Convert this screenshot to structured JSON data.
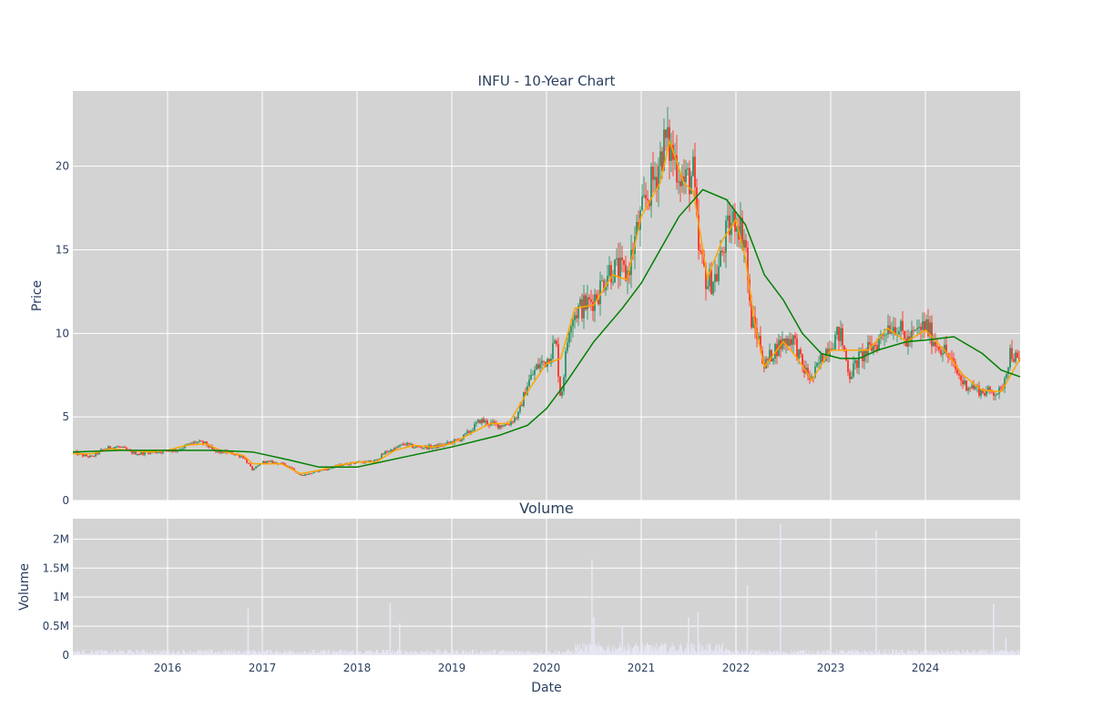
{
  "chart_data": [
    {
      "type": "candlestick",
      "title": "INFU - 10-Year Chart",
      "ylabel": "Price",
      "xlabel": "",
      "x_range": [
        2015.0,
        2025.0
      ],
      "ylim": [
        0,
        24.5
      ],
      "y_ticks": [
        0,
        5,
        10,
        15,
        20
      ],
      "x_ticks": [
        2016,
        2017,
        2018,
        2019,
        2020,
        2021,
        2022,
        2023,
        2024
      ],
      "grid": true,
      "plot_bgcolor": "#d3d3d3",
      "increasing_color": "#3d9970",
      "decreasing_color": "#ff4136",
      "series": [
        {
          "kind": "close",
          "color": "#3d9970",
          "points": [
            [
              2015.0,
              2.9
            ],
            [
              2015.1,
              2.7
            ],
            [
              2015.2,
              2.6
            ],
            [
              2015.3,
              3.0
            ],
            [
              2015.4,
              3.2
            ],
            [
              2015.5,
              3.2
            ],
            [
              2015.6,
              2.9
            ],
            [
              2015.7,
              2.8
            ],
            [
              2015.8,
              2.9
            ],
            [
              2015.9,
              2.9
            ],
            [
              2016.0,
              3.0
            ],
            [
              2016.1,
              3.0
            ],
            [
              2016.2,
              3.3
            ],
            [
              2016.3,
              3.5
            ],
            [
              2016.4,
              3.4
            ],
            [
              2016.5,
              2.9
            ],
            [
              2016.6,
              2.9
            ],
            [
              2016.7,
              2.8
            ],
            [
              2016.8,
              2.6
            ],
            [
              2016.9,
              1.8
            ],
            [
              2017.0,
              2.3
            ],
            [
              2017.1,
              2.3
            ],
            [
              2017.2,
              2.2
            ],
            [
              2017.3,
              2.0
            ],
            [
              2017.4,
              1.5
            ],
            [
              2017.5,
              1.6
            ],
            [
              2017.6,
              1.8
            ],
            [
              2017.7,
              1.9
            ],
            [
              2017.8,
              2.1
            ],
            [
              2017.9,
              2.2
            ],
            [
              2018.0,
              2.3
            ],
            [
              2018.1,
              2.3
            ],
            [
              2018.2,
              2.4
            ],
            [
              2018.3,
              2.9
            ],
            [
              2018.4,
              3.1
            ],
            [
              2018.5,
              3.4
            ],
            [
              2018.6,
              3.2
            ],
            [
              2018.7,
              3.2
            ],
            [
              2018.8,
              3.2
            ],
            [
              2018.9,
              3.3
            ],
            [
              2019.0,
              3.5
            ],
            [
              2019.1,
              3.7
            ],
            [
              2019.2,
              4.2
            ],
            [
              2019.3,
              4.8
            ],
            [
              2019.4,
              4.6
            ],
            [
              2019.5,
              4.5
            ],
            [
              2019.6,
              4.6
            ],
            [
              2019.7,
              5.1
            ],
            [
              2019.8,
              7.0
            ],
            [
              2019.9,
              8.0
            ],
            [
              2020.0,
              8.4
            ],
            [
              2020.1,
              9.5
            ],
            [
              2020.15,
              6.0
            ],
            [
              2020.25,
              11.0
            ],
            [
              2020.35,
              11.5
            ],
            [
              2020.45,
              11.8
            ],
            [
              2020.55,
              12.5
            ],
            [
              2020.65,
              13.8
            ],
            [
              2020.75,
              13.8
            ],
            [
              2020.85,
              13.5
            ],
            [
              2020.95,
              16.0
            ],
            [
              2021.05,
              18.0
            ],
            [
              2021.15,
              19.5
            ],
            [
              2021.25,
              21.5
            ],
            [
              2021.35,
              20.5
            ],
            [
              2021.45,
              19.0
            ],
            [
              2021.55,
              19.5
            ],
            [
              2021.6,
              15.0
            ],
            [
              2021.7,
              13.0
            ],
            [
              2021.8,
              13.5
            ],
            [
              2021.9,
              16.0
            ],
            [
              2022.0,
              17.0
            ],
            [
              2022.1,
              15.5
            ],
            [
              2022.15,
              11.0
            ],
            [
              2022.25,
              9.5
            ],
            [
              2022.3,
              8.0
            ],
            [
              2022.4,
              9.0
            ],
            [
              2022.5,
              9.5
            ],
            [
              2022.6,
              9.8
            ],
            [
              2022.7,
              8.0
            ],
            [
              2022.8,
              7.2
            ],
            [
              2022.9,
              8.5
            ],
            [
              2023.0,
              9.5
            ],
            [
              2023.1,
              10.0
            ],
            [
              2023.2,
              7.5
            ],
            [
              2023.3,
              8.5
            ],
            [
              2023.4,
              9.0
            ],
            [
              2023.5,
              9.5
            ],
            [
              2023.6,
              10.5
            ],
            [
              2023.7,
              10.5
            ],
            [
              2023.8,
              9.5
            ],
            [
              2023.9,
              10.0
            ],
            [
              2024.0,
              10.5
            ],
            [
              2024.1,
              9.5
            ],
            [
              2024.2,
              9.0
            ],
            [
              2024.3,
              8.0
            ],
            [
              2024.4,
              7.0
            ],
            [
              2024.5,
              6.8
            ],
            [
              2024.6,
              6.5
            ],
            [
              2024.7,
              6.5
            ],
            [
              2024.8,
              6.5
            ],
            [
              2024.9,
              9.0
            ],
            [
              2025.0,
              8.0
            ]
          ]
        },
        {
          "kind": "ma_short",
          "color": "#ffa500",
          "points": [
            [
              2015.0,
              2.8
            ],
            [
              2015.2,
              2.8
            ],
            [
              2015.4,
              3.1
            ],
            [
              2015.6,
              3.0
            ],
            [
              2015.8,
              2.9
            ],
            [
              2016.0,
              3.0
            ],
            [
              2016.2,
              3.3
            ],
            [
              2016.4,
              3.4
            ],
            [
              2016.6,
              2.9
            ],
            [
              2016.8,
              2.7
            ],
            [
              2016.9,
              2.2
            ],
            [
              2017.0,
              2.2
            ],
            [
              2017.2,
              2.2
            ],
            [
              2017.4,
              1.6
            ],
            [
              2017.6,
              1.8
            ],
            [
              2017.8,
              2.1
            ],
            [
              2018.0,
              2.3
            ],
            [
              2018.2,
              2.3
            ],
            [
              2018.4,
              3.0
            ],
            [
              2018.6,
              3.3
            ],
            [
              2018.8,
              3.2
            ],
            [
              2019.0,
              3.4
            ],
            [
              2019.2,
              4.0
            ],
            [
              2019.4,
              4.6
            ],
            [
              2019.6,
              4.6
            ],
            [
              2019.8,
              6.5
            ],
            [
              2020.0,
              8.2
            ],
            [
              2020.15,
              8.5
            ],
            [
              2020.3,
              11.5
            ],
            [
              2020.5,
              11.7
            ],
            [
              2020.7,
              13.5
            ],
            [
              2020.85,
              13.2
            ],
            [
              2021.0,
              17.0
            ],
            [
              2021.2,
              19.0
            ],
            [
              2021.3,
              21.5
            ],
            [
              2021.45,
              19.0
            ],
            [
              2021.55,
              18.5
            ],
            [
              2021.7,
              13.3
            ],
            [
              2021.85,
              15.5
            ],
            [
              2022.0,
              16.8
            ],
            [
              2022.1,
              14.5
            ],
            [
              2022.2,
              10.5
            ],
            [
              2022.3,
              8.0
            ],
            [
              2022.5,
              9.5
            ],
            [
              2022.65,
              8.5
            ],
            [
              2022.8,
              7.2
            ],
            [
              2023.0,
              9.0
            ],
            [
              2023.2,
              9.0
            ],
            [
              2023.4,
              9.0
            ],
            [
              2023.6,
              10.3
            ],
            [
              2023.8,
              9.5
            ],
            [
              2024.0,
              10.2
            ],
            [
              2024.2,
              9.0
            ],
            [
              2024.4,
              7.5
            ],
            [
              2024.6,
              6.6
            ],
            [
              2024.8,
              6.5
            ],
            [
              2024.9,
              7.5
            ],
            [
              2025.0,
              8.5
            ]
          ]
        },
        {
          "kind": "ma_long",
          "color": "#008000",
          "points": [
            [
              2015.0,
              2.9
            ],
            [
              2015.5,
              3.0
            ],
            [
              2016.0,
              3.0
            ],
            [
              2016.5,
              3.0
            ],
            [
              2016.9,
              2.9
            ],
            [
              2017.3,
              2.4
            ],
            [
              2017.6,
              2.0
            ],
            [
              2018.0,
              2.0
            ],
            [
              2018.5,
              2.6
            ],
            [
              2019.0,
              3.2
            ],
            [
              2019.5,
              3.9
            ],
            [
              2019.8,
              4.5
            ],
            [
              2020.0,
              5.5
            ],
            [
              2020.2,
              7.0
            ],
            [
              2020.5,
              9.5
            ],
            [
              2020.8,
              11.5
            ],
            [
              2021.0,
              13.0
            ],
            [
              2021.2,
              15.0
            ],
            [
              2021.4,
              17.0
            ],
            [
              2021.65,
              18.6
            ],
            [
              2021.9,
              18.0
            ],
            [
              2022.1,
              16.5
            ],
            [
              2022.3,
              13.5
            ],
            [
              2022.5,
              12.0
            ],
            [
              2022.7,
              10.0
            ],
            [
              2022.9,
              8.8
            ],
            [
              2023.1,
              8.5
            ],
            [
              2023.3,
              8.5
            ],
            [
              2023.5,
              9.0
            ],
            [
              2023.8,
              9.5
            ],
            [
              2024.0,
              9.6
            ],
            [
              2024.3,
              9.8
            ],
            [
              2024.6,
              8.8
            ],
            [
              2024.8,
              7.8
            ],
            [
              2025.0,
              7.4
            ]
          ]
        }
      ]
    },
    {
      "type": "bar",
      "title": "Volume",
      "ylabel": "Volume",
      "xlabel": "Date",
      "x_range": [
        2015.0,
        2025.0
      ],
      "ylim": [
        0,
        2.35
      ],
      "y_ticks": [
        0,
        0.5,
        1,
        1.5,
        2
      ],
      "y_tick_labels": [
        "0",
        "0.5M",
        "1M",
        "1.5M",
        "2M"
      ],
      "x_ticks": [
        2016,
        2017,
        2018,
        2019,
        2020,
        2021,
        2022,
        2023,
        2024
      ],
      "grid": true,
      "plot_bgcolor": "#d3d3d3",
      "bar_color": "#e8e8f8",
      "spikes": [
        [
          2016.85,
          0.8
        ],
        [
          2017.0,
          0.4
        ],
        [
          2018.35,
          0.9
        ],
        [
          2018.45,
          0.55
        ],
        [
          2020.48,
          1.65
        ],
        [
          2020.5,
          0.65
        ],
        [
          2020.8,
          0.5
        ],
        [
          2021.5,
          0.65
        ],
        [
          2021.6,
          0.75
        ],
        [
          2022.12,
          1.2
        ],
        [
          2022.47,
          2.25
        ],
        [
          2023.48,
          2.15
        ],
        [
          2024.72,
          0.88
        ],
        [
          2024.85,
          0.3
        ]
      ]
    }
  ]
}
